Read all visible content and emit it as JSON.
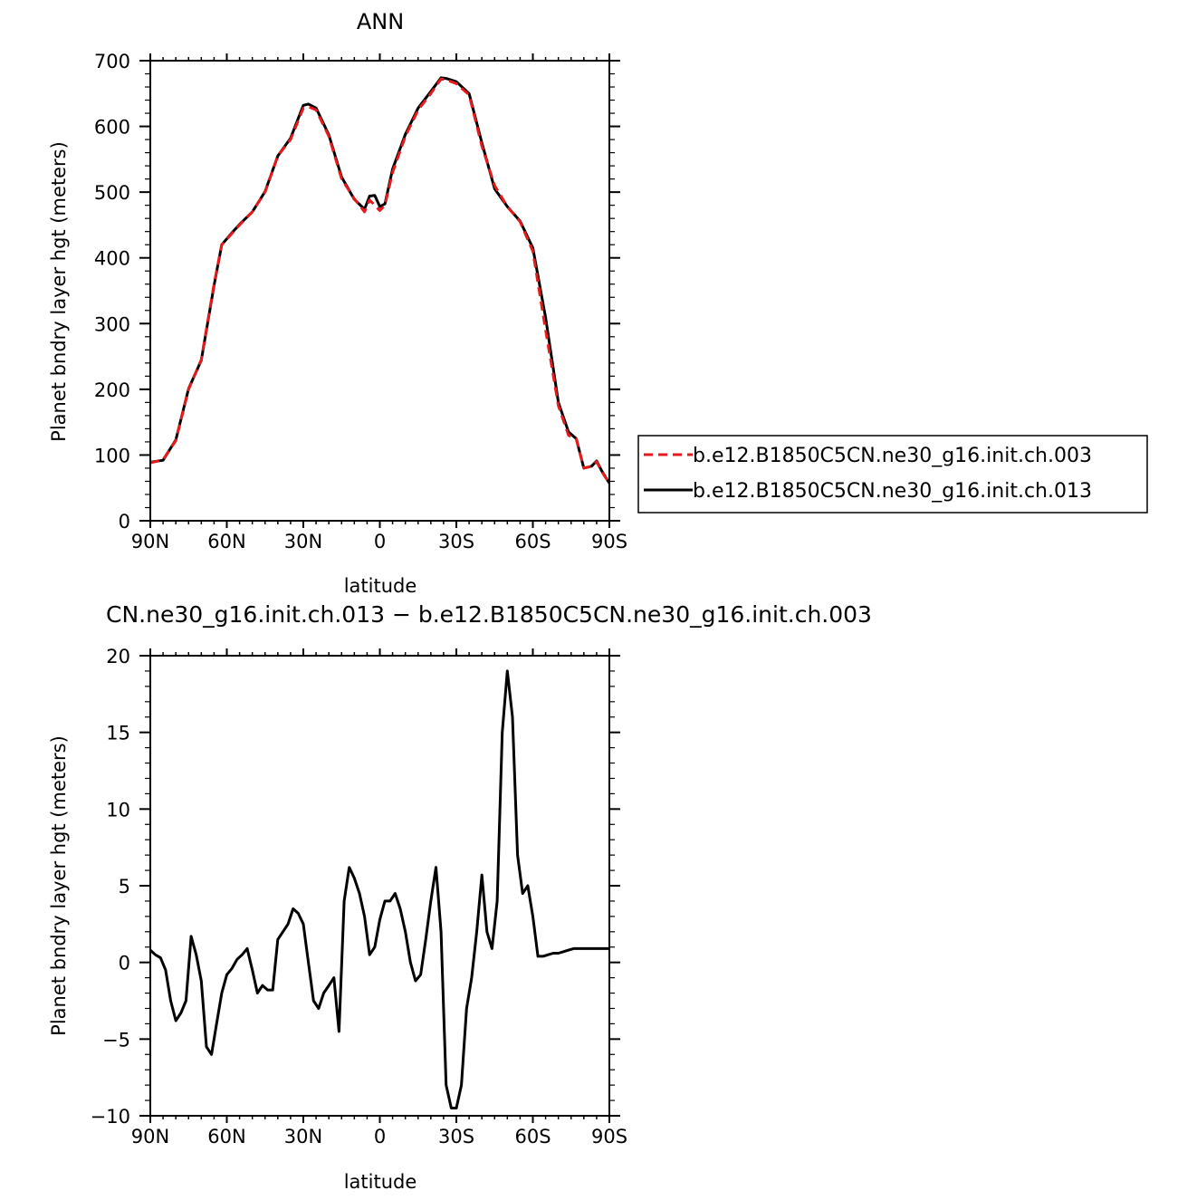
{
  "chart_data": [
    {
      "type": "line",
      "title": "ANN",
      "xlabel": "latitude",
      "ylabel": "Planet bndry layer hgt (meters)",
      "xlim": [
        90,
        -90
      ],
      "ylim": [
        0,
        700
      ],
      "x_ticks": [
        90,
        60,
        30,
        0,
        -30,
        -60,
        -90
      ],
      "x_tick_labels": [
        "90N",
        "60N",
        "30N",
        "0",
        "30S",
        "60S",
        "90S"
      ],
      "y_ticks": [
        0,
        100,
        200,
        300,
        400,
        500,
        600,
        700
      ],
      "y_tick_labels": [
        "0",
        "100",
        "200",
        "300",
        "400",
        "500",
        "600",
        "700"
      ],
      "legend_position": "right",
      "series": [
        {
          "name": "b.e12.B1850C5CN.ne30_g16.init.ch.003",
          "color": "#e41a1c",
          "dash": "dashed",
          "x": [
            90,
            85,
            80,
            75,
            70,
            65,
            62,
            58,
            55,
            50,
            45,
            40,
            35,
            30,
            28,
            25,
            20,
            15,
            10,
            6,
            4,
            2,
            0,
            -2,
            -5,
            -10,
            -15,
            -20,
            -24,
            -26,
            -30,
            -35,
            -40,
            -45,
            -50,
            -55,
            -60,
            -65,
            -70,
            -74,
            -77,
            -80,
            -83,
            -85,
            -87,
            -90
          ],
          "values": [
            88,
            93,
            122,
            200,
            245,
            360,
            420,
            437,
            450,
            470,
            500,
            555,
            580,
            628,
            630,
            625,
            585,
            520,
            490,
            470,
            488,
            480,
            472,
            480,
            530,
            585,
            625,
            650,
            672,
            671,
            665,
            648,
            570,
            510,
            478,
            455,
            410,
            290,
            175,
            130,
            125,
            80,
            83,
            90,
            75,
            57
          ]
        },
        {
          "name": "b.e12.B1850C5CN.ne30_g16.init.ch.013",
          "color": "#000000",
          "dash": "solid",
          "x": [
            90,
            85,
            80,
            75,
            70,
            65,
            62,
            58,
            55,
            50,
            45,
            40,
            35,
            30,
            28,
            25,
            20,
            15,
            10,
            6,
            4,
            2,
            0,
            -2,
            -5,
            -10,
            -15,
            -20,
            -24,
            -26,
            -30,
            -35,
            -40,
            -45,
            -50,
            -55,
            -60,
            -65,
            -70,
            -74,
            -77,
            -80,
            -83,
            -85,
            -87,
            -90
          ],
          "values": [
            89,
            92,
            123,
            201,
            244,
            358,
            420,
            438,
            451,
            470,
            501,
            555,
            582,
            632,
            634,
            628,
            587,
            523,
            489,
            474,
            494,
            495,
            478,
            482,
            535,
            588,
            628,
            653,
            674,
            673,
            668,
            650,
            575,
            505,
            478,
            456,
            415,
            309,
            180,
            135,
            125,
            80,
            83,
            91,
            76,
            57
          ]
        }
      ]
    },
    {
      "type": "line",
      "title": "CN.ne30_g16.init.ch.013 − b.e12.B1850C5CN.ne30_g16.init.ch.003",
      "xlabel": "latitude",
      "ylabel": "Planet bndry layer hgt (meters)",
      "xlim": [
        90,
        -90
      ],
      "ylim": [
        -10,
        20
      ],
      "x_ticks": [
        90,
        60,
        30,
        0,
        -30,
        -60,
        -90
      ],
      "x_tick_labels": [
        "90N",
        "60N",
        "30N",
        "0",
        "30S",
        "60S",
        "90S"
      ],
      "y_ticks": [
        -10,
        -5,
        0,
        5,
        10,
        15,
        20
      ],
      "y_tick_labels": [
        "−10",
        "−5",
        "0",
        "5",
        "10",
        "15",
        "20"
      ],
      "series": [
        {
          "color": "#000000",
          "x": [
            90,
            88,
            86,
            84,
            82,
            80,
            78,
            76,
            74,
            72,
            70,
            68,
            66,
            64,
            62,
            60,
            58,
            56,
            54,
            52,
            50,
            48,
            46,
            44,
            42,
            40,
            38,
            36,
            34,
            32,
            30,
            28,
            26,
            24,
            22,
            20,
            18,
            16,
            14,
            12,
            10,
            8,
            6,
            4,
            2,
            0,
            -2,
            -4,
            -6,
            -8,
            -10,
            -12,
            -14,
            -16,
            -18,
            -20,
            -22,
            -24,
            -26,
            -28,
            -30,
            -32,
            -34,
            -36,
            -38,
            -40,
            -42,
            -44,
            -46,
            -48,
            -50,
            -52,
            -54,
            -56,
            -58,
            -60,
            -62,
            -64,
            -66,
            -68,
            -70,
            -72,
            -74,
            -76,
            -78,
            -80,
            -82,
            -84,
            -86,
            -88,
            -90
          ],
          "values": [
            0.8,
            0.5,
            0.3,
            -0.5,
            -2.5,
            -3.8,
            -3.3,
            -2.5,
            1.7,
            0.5,
            -1.2,
            -5.5,
            -6.0,
            -4.0,
            -2.0,
            -0.8,
            -0.4,
            0.2,
            0.5,
            0.9,
            -0.5,
            -2.0,
            -1.5,
            -1.8,
            -1.8,
            1.5,
            2.0,
            2.5,
            3.5,
            3.2,
            2.5,
            0.0,
            -2.5,
            -3.0,
            -2.0,
            -1.5,
            -1.0,
            -4.5,
            4.0,
            6.2,
            5.5,
            4.5,
            3.0,
            0.5,
            1.0,
            2.8,
            4.0,
            4.0,
            4.5,
            3.5,
            2.0,
            0.0,
            -1.2,
            -0.8,
            1.5,
            4.0,
            6.2,
            2.0,
            -8.0,
            -9.5,
            -9.5,
            -8.0,
            -3.0,
            -1.0,
            2.0,
            5.7,
            2.0,
            0.9,
            4.0,
            15.0,
            19.0,
            16.0,
            7.0,
            4.5,
            5.0,
            3.0,
            0.4,
            0.4,
            0.5,
            0.6,
            0.6,
            0.7,
            0.8,
            0.9,
            0.9,
            0.9,
            0.9,
            0.9,
            0.9,
            0.9,
            0.9
          ]
        }
      ]
    }
  ]
}
